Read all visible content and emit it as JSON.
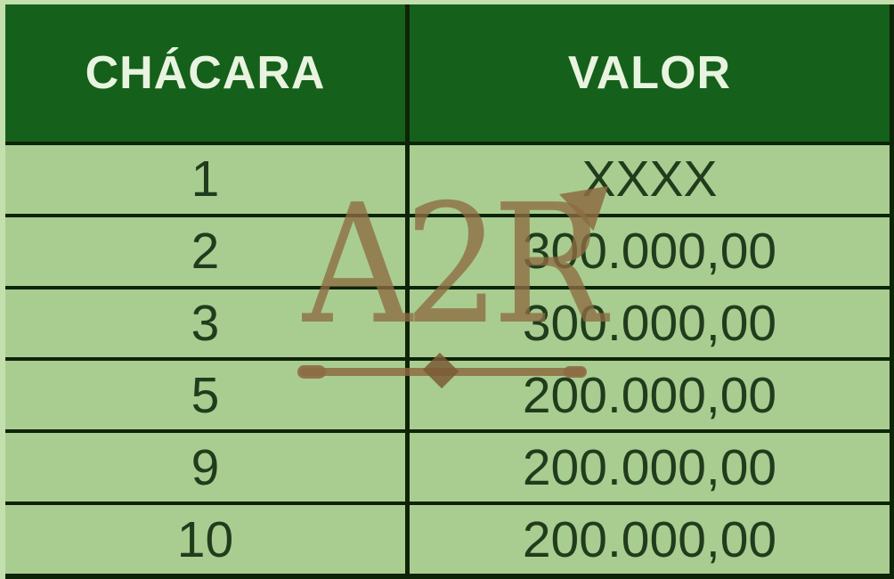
{
  "table": {
    "headers": {
      "chacara": "CHÁCARA",
      "valor": "VALOR"
    },
    "rows": [
      {
        "chacara": "1",
        "valor": "XXXX"
      },
      {
        "chacara": "2",
        "valor": "300.000,00"
      },
      {
        "chacara": "3",
        "valor": "300.000,00"
      },
      {
        "chacara": "5",
        "valor": "200.000,00"
      },
      {
        "chacara": "9",
        "valor": "200.000,00"
      },
      {
        "chacara": "10",
        "valor": "200.000,00"
      }
    ]
  },
  "watermark": {
    "text": "A2R"
  },
  "colors": {
    "header_bg": "#15601a",
    "row_bg": "#a9cd90",
    "border": "#0e2408",
    "header_text": "#e8f4e0",
    "cell_text": "#213c1d",
    "watermark": "#8d6b42"
  },
  "chart_data": {
    "type": "table",
    "columns": [
      "CHÁCARA",
      "VALOR"
    ],
    "rows": [
      [
        "1",
        "XXXX"
      ],
      [
        "2",
        "300.000,00"
      ],
      [
        "3",
        "300.000,00"
      ],
      [
        "5",
        "200.000,00"
      ],
      [
        "9",
        "200.000,00"
      ],
      [
        "10",
        "200.000,00"
      ]
    ],
    "legend": "none",
    "grid": "heavy dark-green cell borders"
  }
}
